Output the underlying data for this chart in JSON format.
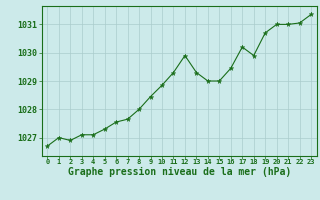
{
  "x": [
    0,
    1,
    2,
    3,
    4,
    5,
    6,
    7,
    8,
    9,
    10,
    11,
    12,
    13,
    14,
    15,
    16,
    17,
    18,
    19,
    20,
    21,
    22,
    23
  ],
  "y": [
    1026.7,
    1027.0,
    1026.9,
    1027.1,
    1027.1,
    1027.3,
    1027.55,
    1027.65,
    1028.0,
    1028.45,
    1028.85,
    1029.3,
    1029.9,
    1029.3,
    1029.0,
    1029.0,
    1029.45,
    1030.2,
    1029.9,
    1030.7,
    1031.0,
    1031.0,
    1031.05,
    1031.35
  ],
  "line_color": "#1a6e1a",
  "marker": "*",
  "marker_size": 3.5,
  "background_color": "#cceaea",
  "grid_color": "#aacccc",
  "xlabel": "Graphe pression niveau de la mer (hPa)",
  "xlabel_color": "#1a6e1a",
  "xlabel_fontsize": 7,
  "tick_color": "#1a6e1a",
  "tick_fontsize": 5,
  "ytick_fontsize": 6,
  "yticks": [
    1027,
    1028,
    1029,
    1030,
    1031
  ],
  "xticks": [
    0,
    1,
    2,
    3,
    4,
    5,
    6,
    7,
    8,
    9,
    10,
    11,
    12,
    13,
    14,
    15,
    16,
    17,
    18,
    19,
    20,
    21,
    22,
    23
  ],
  "ylim": [
    1026.35,
    1031.65
  ],
  "xlim": [
    -0.5,
    23.5
  ]
}
